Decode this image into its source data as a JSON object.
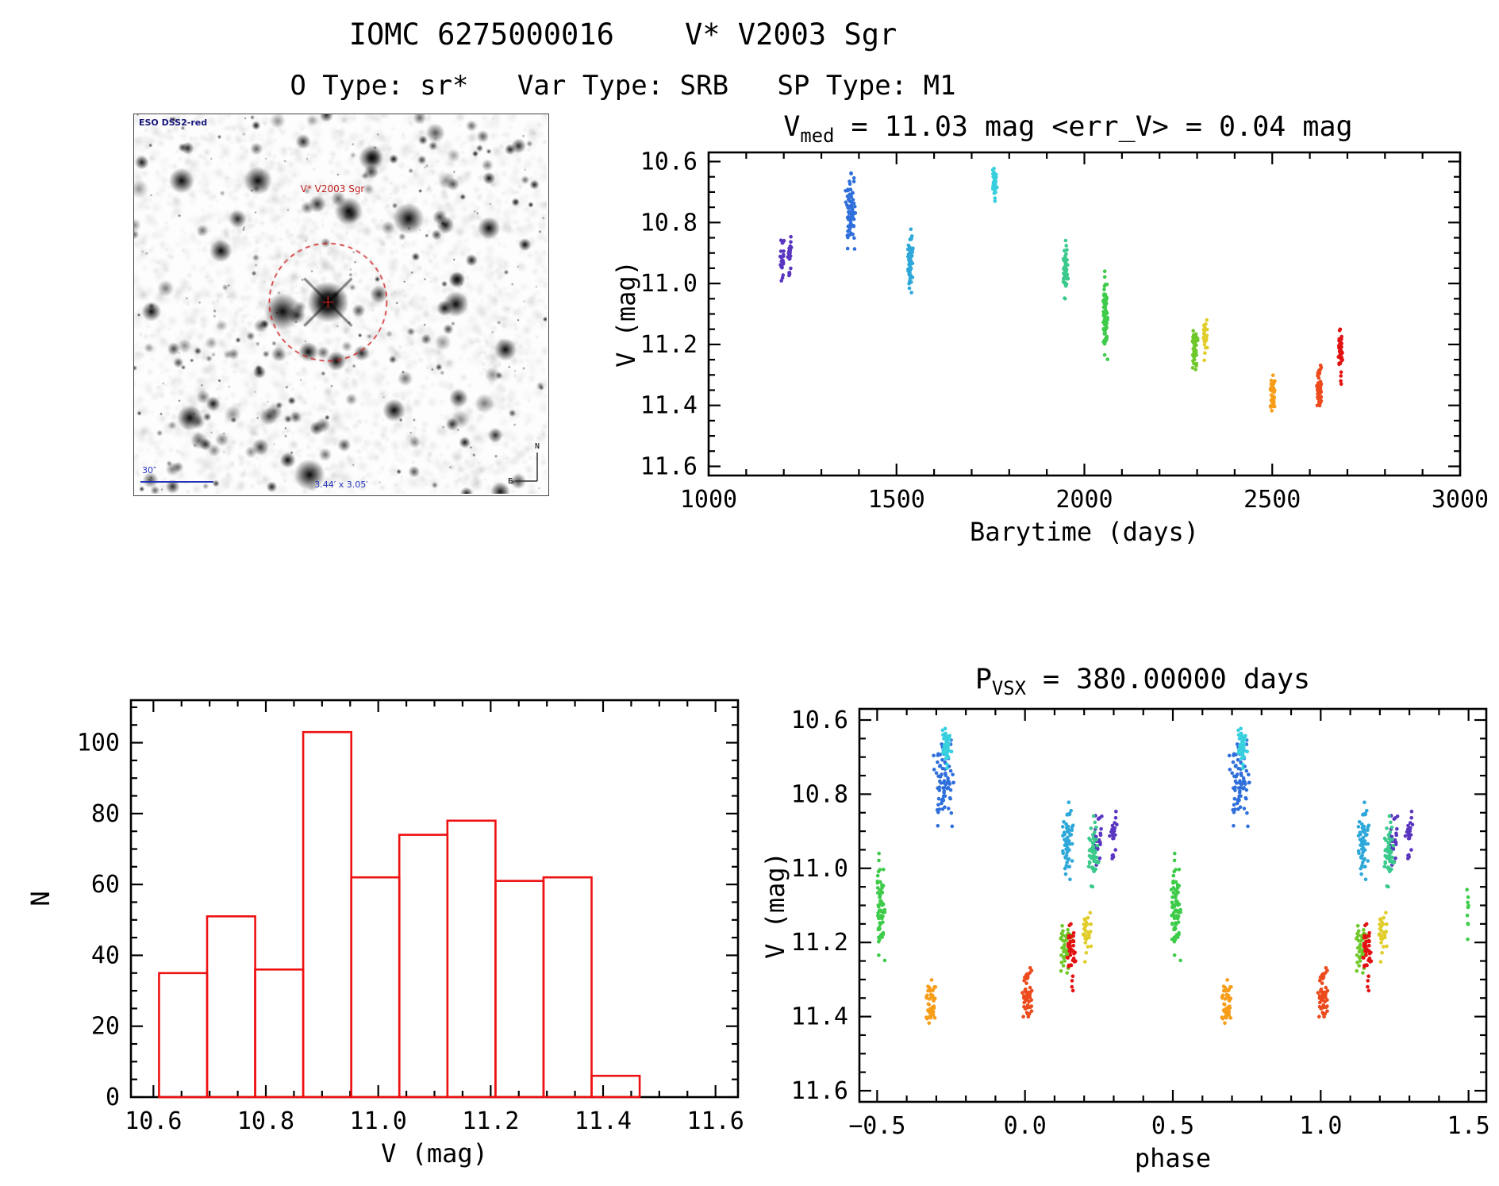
{
  "header": {
    "title": "IOMC 6275000016    V* V2003 Sgr",
    "subtitle": "O Type: sr*   Var Type: SRB   SP Type: M1"
  },
  "finder": {
    "survey_label": "ESO DSS2-red",
    "star_label": "V* V2003 Sgr",
    "scale_label": "30″",
    "fov_label": "3.44′ x 3.05′",
    "compass_north": "N",
    "compass_east": "E",
    "circle_color": "#cc2222"
  },
  "chart_data": [
    {
      "id": "lightcurve",
      "type": "scatter",
      "title": {
        "prefix": "V",
        "sub": "med",
        "rest": " = 11.03 mag <err_V> = 0.04 mag"
      },
      "xlabel": "Barytime (days)",
      "ylabel": "V (mag)",
      "xlim": [
        1000,
        3000
      ],
      "ylim": [
        10.57,
        11.63
      ],
      "y_inverted": true,
      "xticks": [
        1000,
        1500,
        2000,
        2500,
        3000
      ],
      "xtick_labels": [
        "1000",
        "1500",
        "2000",
        "2500",
        "3000"
      ],
      "yticks": [
        10.6,
        10.8,
        11.0,
        11.2,
        11.4,
        11.6
      ],
      "ytick_labels": [
        "10.6",
        "10.8",
        "11.0",
        "11.2",
        "11.4",
        "11.6"
      ],
      "x_minor": 100,
      "y_minor": 0.05,
      "clusters": [
        {
          "t": 1196,
          "dt": 7,
          "v": [
            10.82,
            11.04
          ],
          "n": 22,
          "color": "#5a35c0"
        },
        {
          "t": 1216,
          "dt": 6,
          "v": [
            10.81,
            11.0
          ],
          "n": 23,
          "color": "#5a35c0"
        },
        {
          "t": 1378,
          "dt": 15,
          "v": [
            10.62,
            10.93
          ],
          "n": 75,
          "color": "#2f6fdb"
        },
        {
          "t": 1536,
          "dt": 9,
          "v": [
            10.82,
            11.03
          ],
          "n": 55,
          "color": "#2ea8d8"
        },
        {
          "t": 1762,
          "dt": 7,
          "v": [
            10.61,
            10.73
          ],
          "n": 50,
          "color": "#38cfdf"
        },
        {
          "t": 1950,
          "dt": 9,
          "v": [
            10.84,
            11.06
          ],
          "n": 55,
          "color": "#3bc98c"
        },
        {
          "t": 2056,
          "dt": 7,
          "v": [
            10.96,
            11.25
          ],
          "n": 75,
          "color": "#3ecb49"
        },
        {
          "t": 2295,
          "dt": 8,
          "v": [
            11.11,
            11.31
          ],
          "n": 45,
          "color": "#6ec829"
        },
        {
          "t": 2321,
          "dt": 6,
          "v": [
            11.1,
            11.26
          ],
          "n": 30,
          "color": "#e0cd2a"
        },
        {
          "t": 2501,
          "dt": 7,
          "v": [
            11.28,
            11.43
          ],
          "n": 45,
          "color": "#f79d18"
        },
        {
          "t": 2624,
          "dt": 7,
          "v": [
            11.26,
            11.44
          ],
          "n": 50,
          "color": "#ed4a1d"
        },
        {
          "t": 2681,
          "dt": 7,
          "v": [
            11.12,
            11.33
          ],
          "n": 43,
          "color": "#e31212"
        }
      ]
    },
    {
      "id": "histogram",
      "type": "histogram",
      "xlabel": "V (mag)",
      "ylabel": "N",
      "xlim": [
        10.56,
        11.64
      ],
      "ylim": [
        0,
        112
      ],
      "y_inverted": false,
      "xticks": [
        10.6,
        10.8,
        11.0,
        11.2,
        11.4,
        11.6
      ],
      "xtick_labels": [
        "10.6",
        "10.8",
        "11.0",
        "11.2",
        "11.4",
        "11.6"
      ],
      "yticks": [
        0,
        20,
        40,
        60,
        80,
        100
      ],
      "ytick_labels": [
        "0",
        "20",
        "40",
        "60",
        "80",
        "100"
      ],
      "x_minor": 0.05,
      "y_minor": 5,
      "bin_start": 10.61,
      "bin_width": 0.0855,
      "counts": [
        35,
        51,
        36,
        103,
        62,
        74,
        78,
        61,
        62,
        6
      ],
      "color": "#ee1111"
    },
    {
      "id": "phase",
      "type": "scatter",
      "title": {
        "prefix": "P",
        "sub": "VSX",
        "rest": " = 380.00000 days"
      },
      "xlabel": "phase",
      "ylabel": "V (mag)",
      "xlim": [
        -0.56,
        1.56
      ],
      "ylim": [
        10.57,
        11.63
      ],
      "y_inverted": true,
      "xticks": [
        -0.5,
        0,
        0.5,
        1,
        1.5
      ],
      "xtick_labels": [
        "−0.5",
        "0.0",
        "0.5",
        "1.0",
        "1.5"
      ],
      "yticks": [
        10.6,
        10.8,
        11.0,
        11.2,
        11.4,
        11.6
      ],
      "ytick_labels": [
        "10.6",
        "10.8",
        "11.0",
        "11.2",
        "11.4",
        "11.6"
      ],
      "x_minor": 0.1,
      "y_minor": 0.05,
      "period_days": 380,
      "phase_offset": 0.1,
      "use_clusters_from": "lightcurve"
    }
  ]
}
